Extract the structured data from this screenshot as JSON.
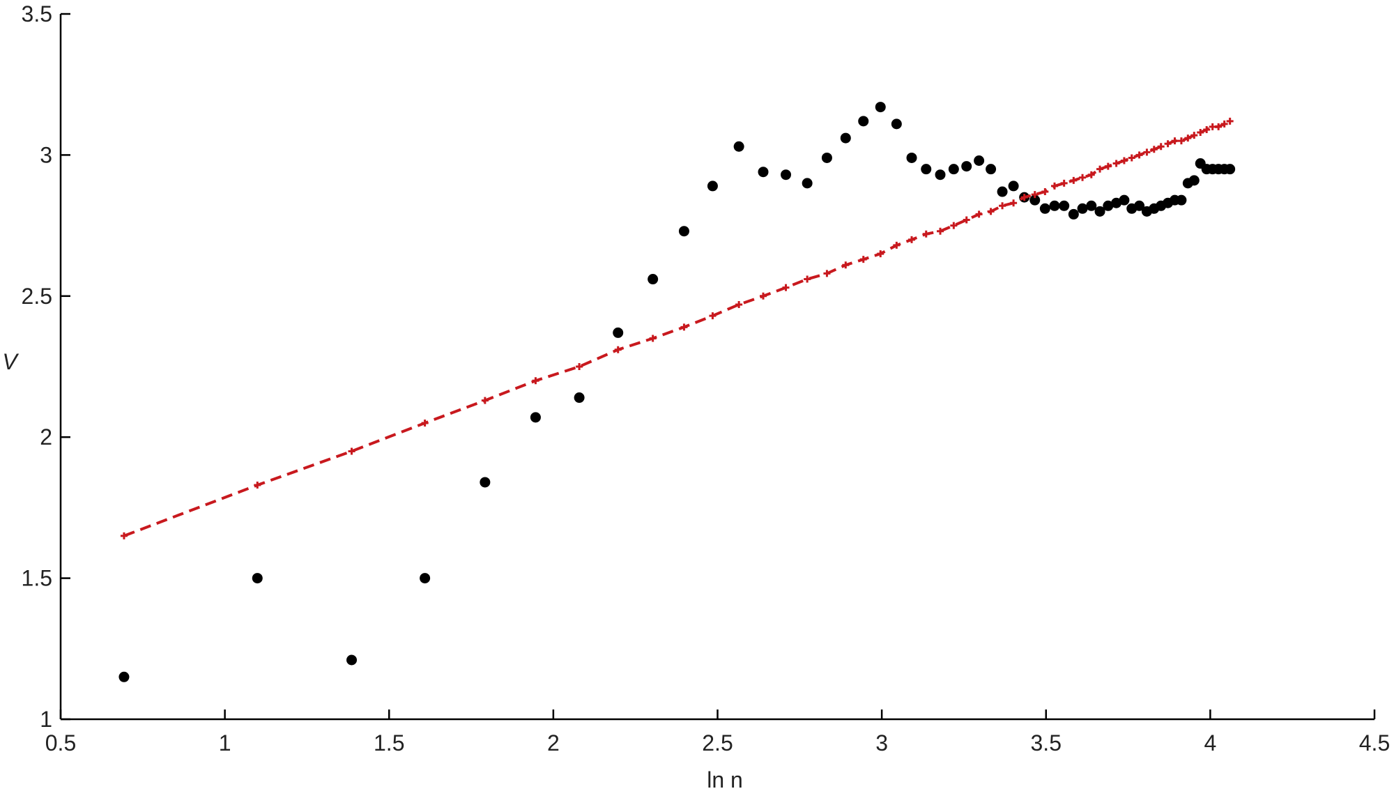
{
  "chart_data": {
    "type": "scatter",
    "xlabel": "ln n",
    "ylabel": "V",
    "xlim": [
      0.5,
      4.5
    ],
    "xticks": [
      0.5,
      1,
      1.5,
      2,
      2.5,
      3,
      3.5,
      4,
      4.5
    ],
    "ylim": [
      1,
      3.5
    ],
    "yticks": [
      1,
      1.5,
      2,
      2.5,
      3,
      3.5
    ],
    "x": [
      0.693,
      1.099,
      1.386,
      1.609,
      1.792,
      1.946,
      2.079,
      2.197,
      2.303,
      2.398,
      2.485,
      2.565,
      2.639,
      2.708,
      2.773,
      2.833,
      2.89,
      2.944,
      2.996,
      3.045,
      3.091,
      3.135,
      3.178,
      3.219,
      3.258,
      3.296,
      3.332,
      3.367,
      3.401,
      3.434,
      3.466,
      3.497,
      3.526,
      3.555,
      3.584,
      3.611,
      3.638,
      3.664,
      3.689,
      3.714,
      3.738,
      3.761,
      3.784,
      3.807,
      3.829,
      3.85,
      3.871,
      3.892,
      3.912,
      3.932,
      3.951,
      3.97,
      3.989,
      4.007,
      4.025,
      4.043,
      4.06
    ],
    "series": [
      {
        "color": "#000000",
        "style": "markers",
        "values": [
          1.15,
          1.5,
          1.21,
          1.5,
          1.84,
          2.07,
          2.14,
          2.37,
          2.56,
          2.73,
          2.89,
          3.03,
          2.94,
          2.93,
          2.9,
          2.99,
          3.06,
          3.12,
          3.17,
          3.11,
          2.99,
          2.95,
          2.93,
          2.95,
          2.96,
          2.98,
          2.95,
          2.87,
          2.89,
          2.85,
          2.84,
          2.81,
          2.82,
          2.82,
          2.79,
          2.81,
          2.82,
          2.8,
          2.82,
          2.83,
          2.84,
          2.81,
          2.82,
          2.8,
          2.81,
          2.82,
          2.83,
          2.84,
          2.84,
          2.9,
          2.91,
          2.97,
          2.95,
          2.95,
          2.95,
          2.95,
          2.95
        ]
      },
      {
        "color": "#c8191e",
        "style": "dashed-line",
        "values": [
          1.65,
          1.83,
          1.95,
          2.05,
          2.13,
          2.2,
          2.25,
          2.31,
          2.35,
          2.39,
          2.43,
          2.47,
          2.5,
          2.53,
          2.56,
          2.58,
          2.61,
          2.63,
          2.65,
          2.68,
          2.7,
          2.72,
          2.73,
          2.75,
          2.77,
          2.79,
          2.8,
          2.82,
          2.83,
          2.85,
          2.86,
          2.87,
          2.89,
          2.9,
          2.91,
          2.92,
          2.93,
          2.95,
          2.96,
          2.97,
          2.98,
          2.99,
          3.0,
          3.01,
          3.02,
          3.03,
          3.04,
          3.05,
          3.05,
          3.06,
          3.07,
          3.08,
          3.09,
          3.1,
          3.1,
          3.11,
          3.12
        ]
      }
    ]
  }
}
